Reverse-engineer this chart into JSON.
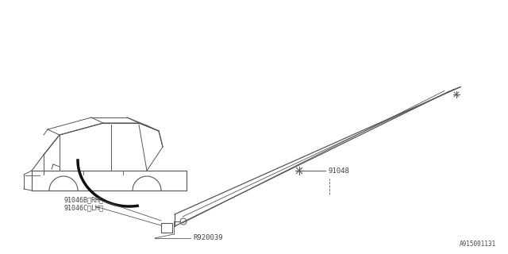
{
  "bg_color": "#ffffff",
  "line_color": "#555555",
  "text_color": "#444444",
  "fig_width": 6.4,
  "fig_height": 3.2,
  "diagram_title": "",
  "part_id": "A915001131",
  "labels": {
    "91046B_RH": "91046B〈RH〉",
    "91046C_LH": "91046C〈LH〉",
    "91048": "91048",
    "R920039": "R920039"
  }
}
